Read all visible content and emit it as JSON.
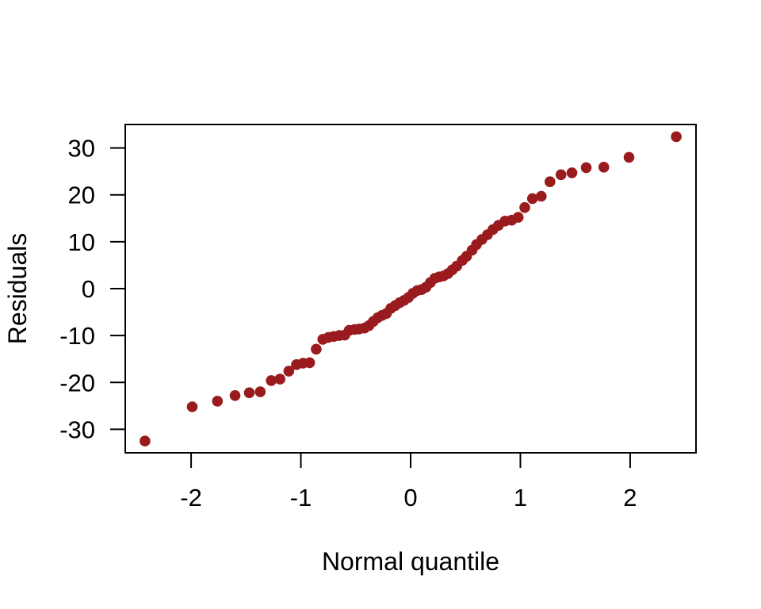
{
  "figure": {
    "background": "#ffffff",
    "frame_color": "#000000"
  },
  "chart_data": {
    "type": "scatter",
    "title": "",
    "xlabel": "Normal quantile",
    "ylabel": "Residuals",
    "xlim": [
      -2.6,
      2.6
    ],
    "ylim": [
      -35,
      35
    ],
    "x_ticks": [
      -2,
      -1,
      0,
      1,
      2
    ],
    "y_ticks": [
      -30,
      -20,
      -10,
      0,
      10,
      20,
      30
    ],
    "grid": false,
    "legend": null,
    "point_color": "#9A1B1E",
    "points": [
      [
        -2.42,
        -32.5
      ],
      [
        -1.99,
        -25.2
      ],
      [
        -1.76,
        -24.0
      ],
      [
        -1.6,
        -22.8
      ],
      [
        -1.47,
        -22.2
      ],
      [
        -1.37,
        -22.0
      ],
      [
        -1.27,
        -19.6
      ],
      [
        -1.19,
        -19.3
      ],
      [
        -1.11,
        -17.6
      ],
      [
        -1.04,
        -16.2
      ],
      [
        -0.98,
        -15.9
      ],
      [
        -0.92,
        -15.8
      ],
      [
        -0.86,
        -12.9
      ],
      [
        -0.8,
        -10.8
      ],
      [
        -0.75,
        -10.4
      ],
      [
        -0.7,
        -10.2
      ],
      [
        -0.65,
        -10.0
      ],
      [
        -0.6,
        -9.9
      ],
      [
        -0.56,
        -8.9
      ],
      [
        -0.51,
        -8.7
      ],
      [
        -0.47,
        -8.6
      ],
      [
        -0.42,
        -8.4
      ],
      [
        -0.38,
        -7.9
      ],
      [
        -0.34,
        -7.0
      ],
      [
        -0.3,
        -6.2
      ],
      [
        -0.26,
        -5.7
      ],
      [
        -0.22,
        -5.3
      ],
      [
        -0.18,
        -4.2
      ],
      [
        -0.14,
        -3.6
      ],
      [
        -0.1,
        -3.0
      ],
      [
        -0.06,
        -2.5
      ],
      [
        -0.02,
        -1.9
      ],
      [
        0.02,
        -1.0
      ],
      [
        0.06,
        -0.4
      ],
      [
        0.1,
        -0.2
      ],
      [
        0.14,
        0.3
      ],
      [
        0.18,
        1.3
      ],
      [
        0.22,
        2.2
      ],
      [
        0.26,
        2.5
      ],
      [
        0.3,
        2.7
      ],
      [
        0.34,
        3.2
      ],
      [
        0.38,
        4.0
      ],
      [
        0.42,
        4.8
      ],
      [
        0.47,
        6.0
      ],
      [
        0.51,
        6.9
      ],
      [
        0.56,
        8.2
      ],
      [
        0.6,
        9.4
      ],
      [
        0.65,
        10.5
      ],
      [
        0.7,
        11.5
      ],
      [
        0.75,
        12.6
      ],
      [
        0.8,
        13.5
      ],
      [
        0.86,
        14.4
      ],
      [
        0.92,
        14.6
      ],
      [
        0.98,
        15.2
      ],
      [
        1.04,
        17.3
      ],
      [
        1.11,
        19.2
      ],
      [
        1.19,
        19.7
      ],
      [
        1.27,
        22.8
      ],
      [
        1.37,
        24.3
      ],
      [
        1.47,
        24.7
      ],
      [
        1.6,
        25.8
      ],
      [
        1.76,
        25.9
      ],
      [
        1.99,
        28.0
      ],
      [
        2.42,
        32.4
      ]
    ]
  }
}
